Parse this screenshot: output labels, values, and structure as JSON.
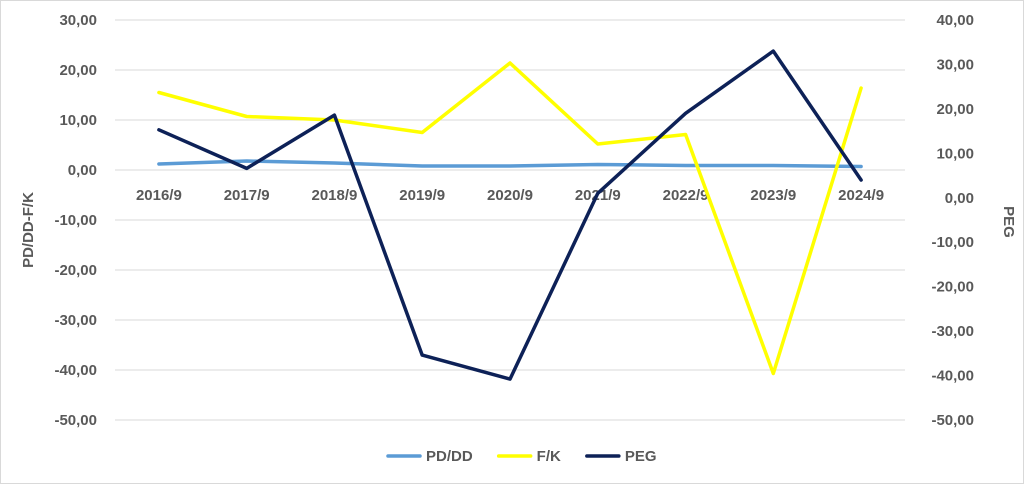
{
  "chart_data": {
    "type": "line",
    "categories": [
      "2016/9",
      "2017/9",
      "2018/9",
      "2019/9",
      "2020/9",
      "2021/9",
      "2022/9",
      "2023/9",
      "2024/9"
    ],
    "ylabel": "PD/DD-F/K",
    "y2label": "PEG",
    "ylim": [
      -50,
      30
    ],
    "y2lim": [
      -50,
      40
    ],
    "yticks": [
      "30,00",
      "20,00",
      "10,00",
      "0,00",
      "-10,00",
      "-20,00",
      "-30,00",
      "-40,00",
      "-50,00"
    ],
    "y2ticks": [
      "40,00",
      "30,00",
      "20,00",
      "10,00",
      "0,00",
      "-10,00",
      "-20,00",
      "-30,00",
      "-40,00",
      "-50,00"
    ],
    "grid": true,
    "legend_position": "bottom",
    "series": [
      {
        "name": "PD/DD",
        "axis": "left",
        "color": "#5b9bd5",
        "values": [
          1.2,
          1.8,
          1.4,
          0.8,
          0.8,
          1.1,
          0.9,
          0.9,
          0.7
        ]
      },
      {
        "name": "F/K",
        "axis": "left",
        "color": "#ffff00",
        "values": [
          15.5,
          10.7,
          10.0,
          7.5,
          21.4,
          5.2,
          7.1,
          -40.7,
          16.4
        ]
      },
      {
        "name": "PEG",
        "axis": "right",
        "color": "#0d2157",
        "values": [
          15.3,
          6.6,
          18.6,
          -35.4,
          -40.8,
          1.0,
          19.0,
          33.0,
          4.0
        ]
      }
    ]
  }
}
